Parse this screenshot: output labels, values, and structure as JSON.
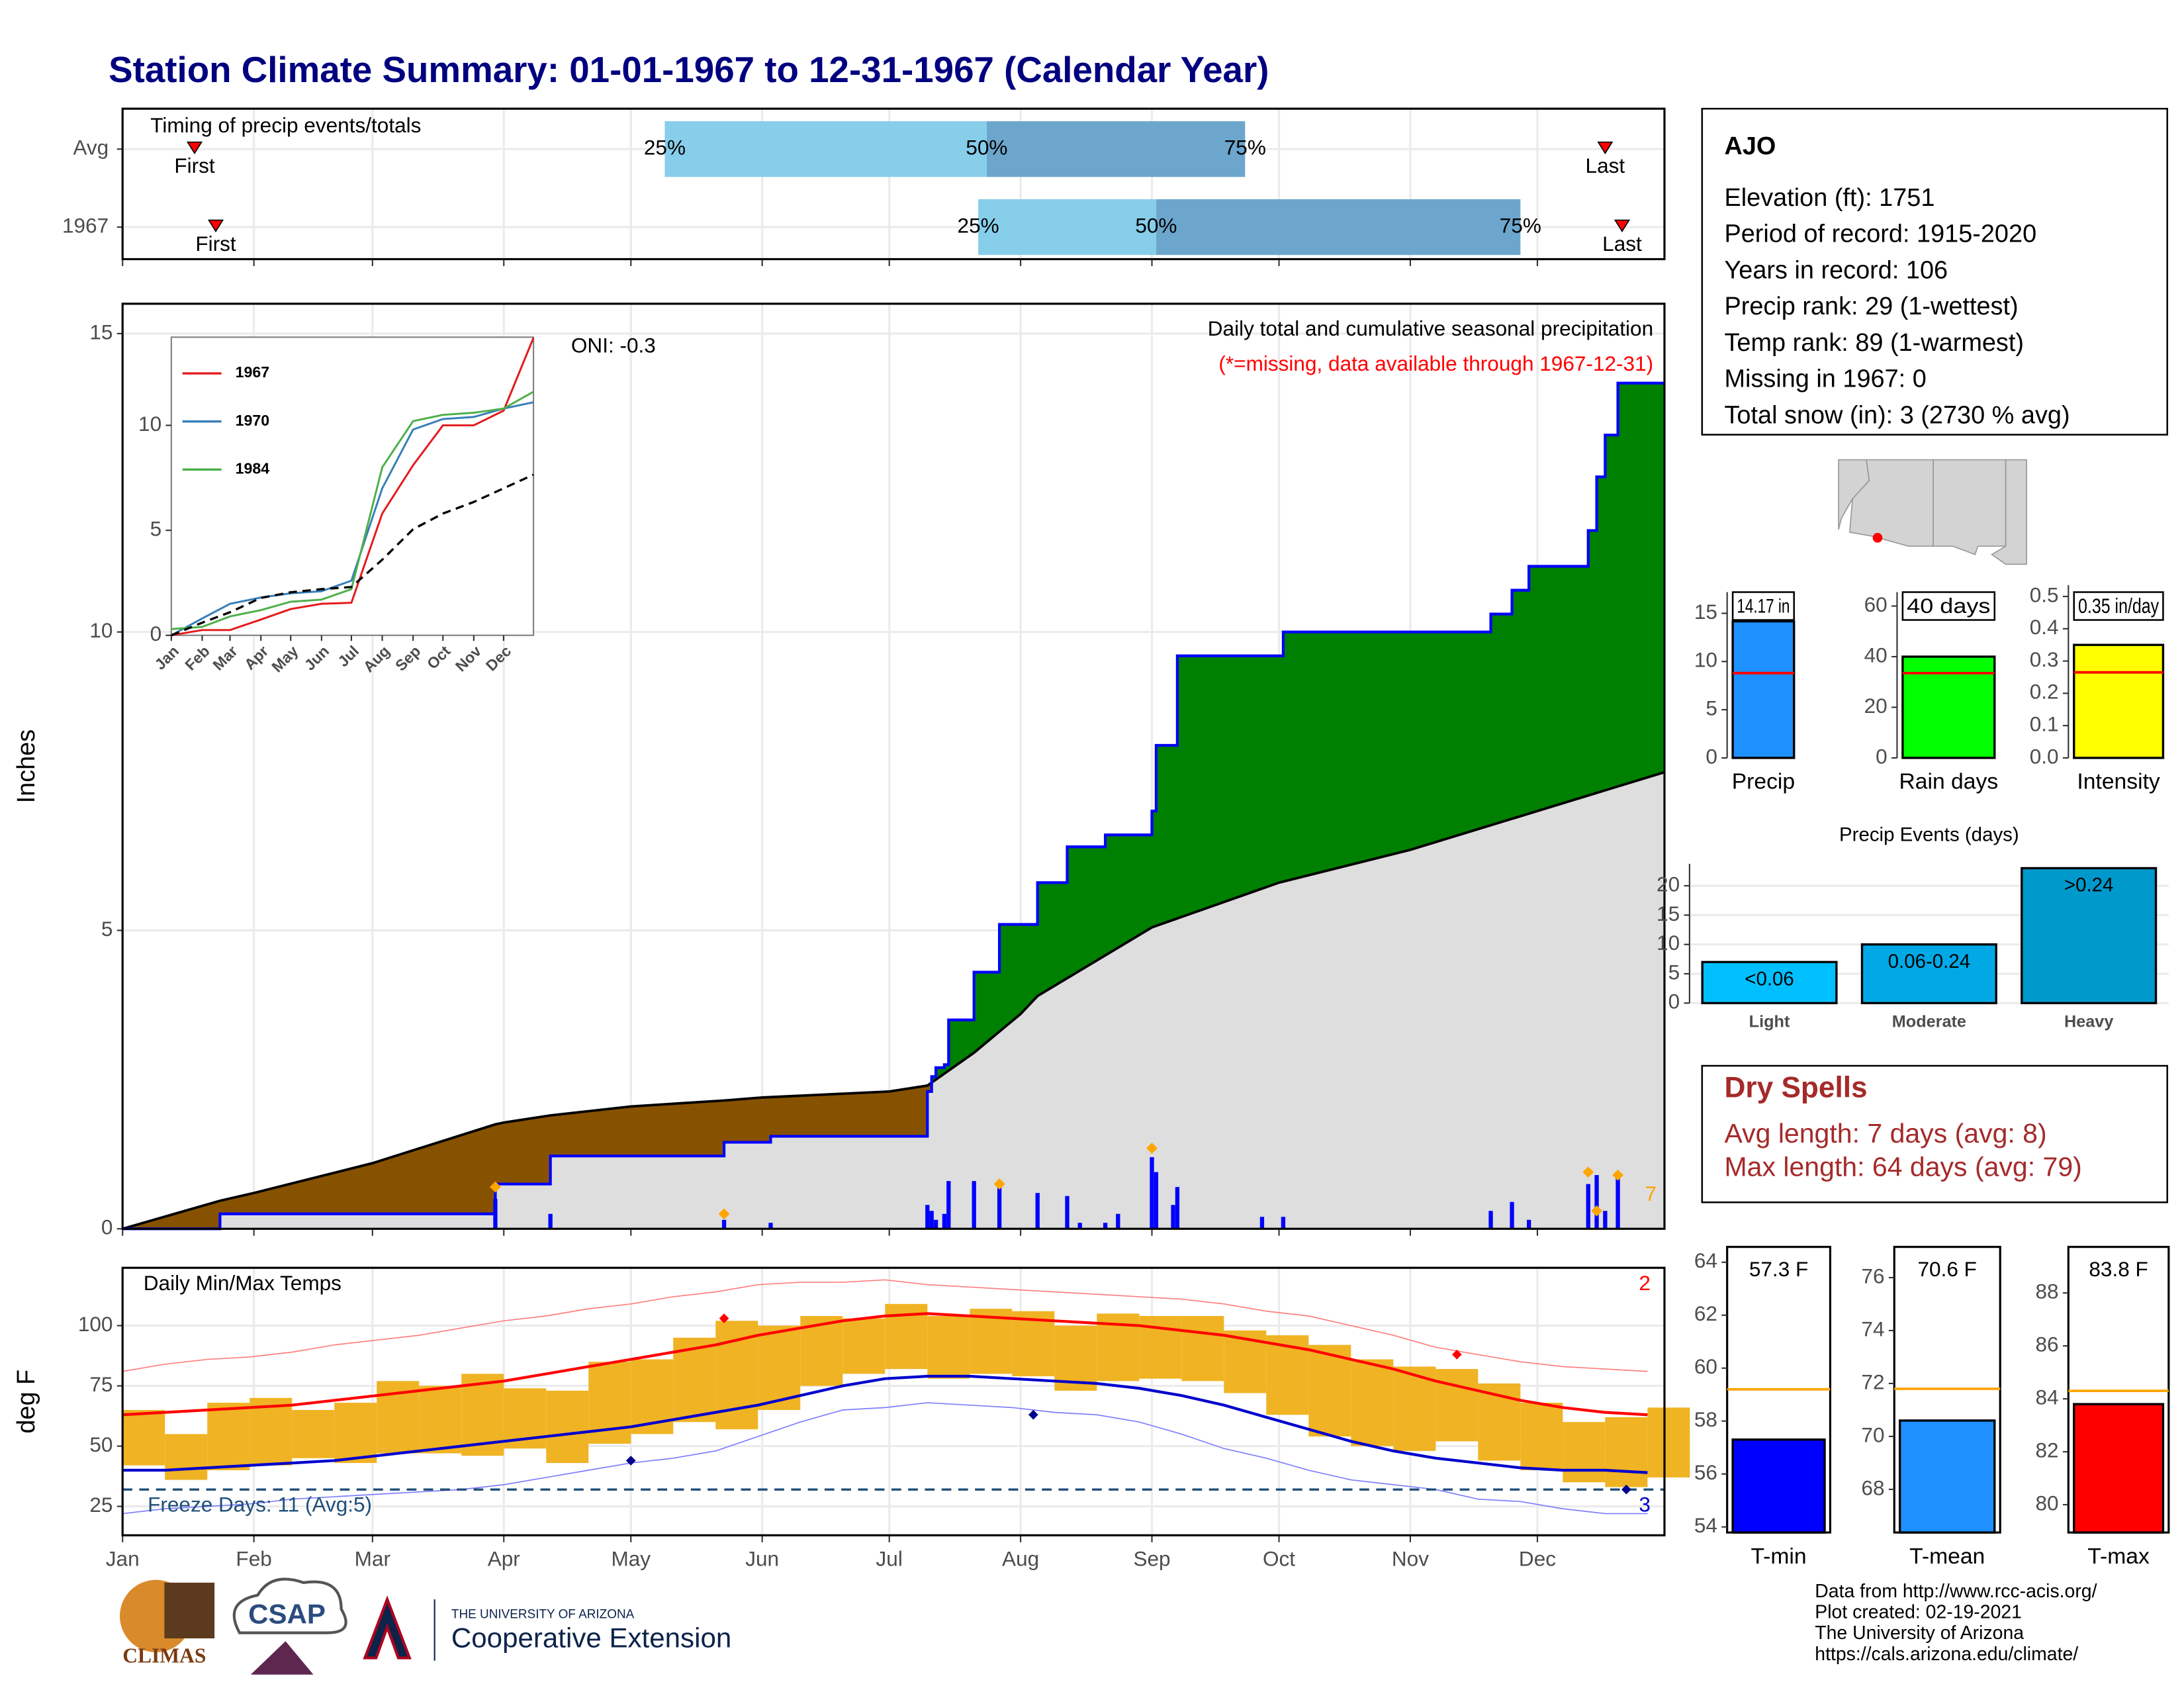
{
  "title": "Station Climate Summary: 01-01-1967 to 12-31-1967 (Calendar Year)",
  "chart_data": [
    {
      "type": "timing",
      "annotation": "Timing of precip events/totals",
      "xlim": [
        0,
        364
      ],
      "xticks": [
        0,
        31,
        59,
        90,
        120,
        151,
        181,
        212,
        243,
        273,
        304,
        334
      ],
      "categories": [
        "Avg",
        "1967"
      ],
      "first": [
        17,
        22
      ],
      "q25": [
        128,
        202
      ],
      "q50": [
        204,
        244
      ],
      "q75": [
        265,
        330
      ],
      "last": [
        350,
        354
      ],
      "labels": {
        "first": "First",
        "last": "Last",
        "q25": "25%",
        "q50": "50%",
        "q75": "75%"
      },
      "colors": {
        "lower": "#87ceeb",
        "upper": "#6ca6cd",
        "marker": "#ff0000"
      }
    },
    {
      "type": "cumulative",
      "title": "Daily total and cumulative seasonal precipitation",
      "subtitle": "(*=missing, data available through 1967-12-31)",
      "annotation": "ONI: -0.3",
      "count": 7,
      "ylabel": "Inches",
      "xlim": [
        0,
        364
      ],
      "ylim": [
        0,
        15.5
      ],
      "yticks": [
        0,
        5,
        10,
        15
      ],
      "xticks": [
        0,
        31,
        59,
        90,
        120,
        151,
        181,
        212,
        243,
        273,
        304,
        334
      ],
      "observed": {
        "color": "#0000ff",
        "x": [
          0,
          23,
          88,
          101,
          142,
          153,
          190,
          191,
          192,
          194,
          195,
          201,
          207,
          216,
          223,
          232,
          243,
          244,
          249,
          274,
          323,
          328,
          332,
          346,
          348,
          350,
          353
        ],
        "values": [
          0,
          0.25,
          0.75,
          1.22,
          1.45,
          1.55,
          2.3,
          2.55,
          2.7,
          2.75,
          3.5,
          4.3,
          5.1,
          5.8,
          6.4,
          6.6,
          7.0,
          8.1,
          9.6,
          10.0,
          10.3,
          10.7,
          11.1,
          11.7,
          12.6,
          13.3,
          14.17
        ]
      },
      "average": {
        "color": "#000000",
        "x": [
          0,
          23,
          31,
          59,
          88,
          90,
          101,
          120,
          142,
          151,
          181,
          190,
          201,
          212,
          216,
          243,
          273,
          304,
          334,
          364
        ],
        "values": [
          0,
          0.47,
          0.6,
          1.1,
          1.75,
          1.78,
          1.9,
          2.05,
          2.15,
          2.2,
          2.3,
          2.4,
          2.95,
          3.6,
          3.9,
          5.05,
          5.8,
          6.35,
          7.0,
          7.65
        ]
      },
      "daily": {
        "color": "#0000ff",
        "x": [
          88,
          101,
          142,
          153,
          190,
          191,
          192,
          194,
          195,
          201,
          207,
          216,
          223,
          226,
          232,
          235,
          243,
          244,
          248,
          249,
          269,
          274,
          323,
          328,
          332,
          346,
          348,
          350,
          353
        ],
        "values": [
          0.5,
          0.25,
          0.15,
          0.1,
          0.4,
          0.3,
          0.15,
          0.25,
          0.8,
          0.8,
          0.7,
          0.6,
          0.55,
          0.1,
          0.1,
          0.25,
          1.2,
          0.95,
          0.4,
          0.7,
          0.2,
          0.2,
          0.3,
          0.45,
          0.15,
          0.75,
          0.9,
          0.3,
          0.85
        ]
      },
      "markers": {
        "color": "#ffa500",
        "x": [
          88,
          142,
          207,
          243,
          346,
          348,
          353
        ],
        "values": [
          0.7,
          0.25,
          0.75,
          1.35,
          0.95,
          0.3,
          0.9
        ]
      },
      "above_color": "#008000",
      "below_color": "#875200",
      "base_color": "#dedede"
    },
    {
      "type": "line",
      "xlim": [
        0,
        364
      ],
      "ylim": [
        0,
        14.2
      ],
      "yticks": [
        0,
        5,
        10
      ],
      "xticks": [
        {
          "value": 0,
          "label": "Jan"
        },
        {
          "value": 31,
          "label": "Feb"
        },
        {
          "value": 59,
          "label": "Mar"
        },
        {
          "value": 90,
          "label": "Apr"
        },
        {
          "value": 120,
          "label": "May"
        },
        {
          "value": 151,
          "label": "Jun"
        },
        {
          "value": 181,
          "label": "Jul"
        },
        {
          "value": 212,
          "label": "Aug"
        },
        {
          "value": 243,
          "label": "Sep"
        },
        {
          "value": 273,
          "label": "Oct"
        },
        {
          "value": 304,
          "label": "Nov"
        },
        {
          "value": 334,
          "label": "Dec"
        }
      ],
      "x": [
        0,
        31,
        59,
        90,
        120,
        151,
        181,
        212,
        243,
        273,
        304,
        334,
        364
      ],
      "series": [
        {
          "name": "1967",
          "color": "#e41a1c",
          "values": [
            0,
            0.25,
            0.25,
            0.75,
            1.25,
            1.5,
            1.55,
            5.8,
            8.1,
            10.0,
            10.0,
            10.7,
            14.17
          ]
        },
        {
          "name": "1970",
          "color": "#377eb8",
          "values": [
            0,
            0.8,
            1.5,
            1.8,
            2.0,
            2.1,
            2.6,
            7.0,
            9.8,
            10.3,
            10.4,
            10.8,
            11.1
          ]
        },
        {
          "name": "1984",
          "color": "#4daf4a",
          "values": [
            0.3,
            0.4,
            0.9,
            1.2,
            1.6,
            1.7,
            2.2,
            8.0,
            10.2,
            10.5,
            10.6,
            10.8,
            11.6
          ]
        },
        {
          "color": "#000000",
          "dash": true,
          "values": [
            0,
            0.6,
            1.1,
            1.78,
            2.05,
            2.2,
            2.3,
            3.6,
            5.05,
            5.8,
            6.35,
            7.0,
            7.65
          ]
        }
      ]
    },
    {
      "type": "temps",
      "title": "Daily Min/Max Temps",
      "ylabel": "deg F",
      "annotation": "Freeze Days: 11 (Avg:5)",
      "high_count": 2,
      "low_count": 3,
      "xlim": [
        0,
        364
      ],
      "ylim": [
        13,
        124
      ],
      "yticks": [
        25,
        50,
        75,
        100
      ],
      "xticks": [
        {
          "value": 0,
          "label": "Jan"
        },
        {
          "value": 31,
          "label": "Feb"
        },
        {
          "value": 59,
          "label": "Mar"
        },
        {
          "value": 90,
          "label": "Apr"
        },
        {
          "value": 120,
          "label": "May"
        },
        {
          "value": 151,
          "label": "Jun"
        },
        {
          "value": 181,
          "label": "Jul"
        },
        {
          "value": 212,
          "label": "Aug"
        },
        {
          "value": 243,
          "label": "Sep"
        },
        {
          "value": 273,
          "label": "Oct"
        },
        {
          "value": 304,
          "label": "Nov"
        },
        {
          "value": 334,
          "label": "Dec"
        }
      ],
      "freeze": 32,
      "freeze_color": "#1f4e79",
      "x": [
        0,
        10,
        20,
        30,
        40,
        50,
        60,
        70,
        80,
        90,
        100,
        110,
        120,
        130,
        140,
        150,
        160,
        170,
        180,
        190,
        200,
        210,
        220,
        230,
        240,
        250,
        260,
        270,
        280,
        290,
        300,
        310,
        320,
        330,
        340,
        350,
        360
      ],
      "daily_low": [
        42,
        36,
        40,
        42,
        45,
        43,
        47,
        47,
        46,
        49,
        43,
        51,
        55,
        60,
        57,
        65,
        75,
        80,
        82,
        78,
        80,
        79,
        73,
        77,
        78,
        77,
        72,
        63,
        54,
        50,
        48,
        52,
        44,
        40,
        35,
        33,
        37
      ],
      "daily_high": [
        65,
        55,
        68,
        70,
        65,
        68,
        77,
        75,
        80,
        74,
        73,
        85,
        86,
        95,
        102,
        100,
        104,
        103,
        109,
        104,
        107,
        106,
        100,
        105,
        104,
        104,
        98,
        96,
        92,
        86,
        83,
        82,
        76,
        68,
        60,
        62,
        66
      ],
      "bar_color": "#f0b323",
      "avg_max": {
        "color": "#ff0000",
        "values": [
          63,
          64,
          65,
          66,
          67,
          69,
          71,
          73,
          75,
          77,
          80,
          83,
          86,
          89,
          92,
          96,
          99,
          102,
          104,
          105,
          104,
          103,
          102,
          101,
          100,
          98,
          96,
          93,
          90,
          86,
          82,
          77,
          73,
          69,
          66,
          64,
          63
        ]
      },
      "avg_min": {
        "color": "#0000cd",
        "values": [
          40,
          40,
          41,
          42,
          43,
          44,
          46,
          48,
          50,
          52,
          54,
          56,
          58,
          61,
          64,
          67,
          71,
          75,
          78,
          79,
          79,
          78,
          77,
          76,
          74,
          71,
          67,
          62,
          57,
          52,
          48,
          45,
          43,
          41,
          40,
          40,
          39
        ]
      },
      "record_max": {
        "color": "#ff7f7f",
        "values": [
          81,
          84,
          86,
          87,
          89,
          92,
          94,
          96,
          99,
          102,
          104,
          107,
          109,
          112,
          114,
          117,
          118,
          118,
          119,
          117,
          116,
          115,
          114,
          113,
          112,
          111,
          109,
          106,
          104,
          100,
          96,
          91,
          88,
          85,
          83,
          82,
          81
        ]
      },
      "record_min": {
        "color": "#7f7fff",
        "values": [
          22,
          24,
          25,
          26,
          28,
          29,
          30,
          31,
          32,
          34,
          37,
          40,
          43,
          45,
          48,
          54,
          60,
          65,
          66,
          68,
          67,
          66,
          64,
          63,
          60,
          55,
          49,
          45,
          40,
          36,
          34,
          32,
          28,
          27,
          24,
          22,
          22
        ]
      },
      "record_highs": {
        "color": "#ff0000",
        "x": [
          142,
          315
        ],
        "values": [
          103,
          88
        ]
      },
      "record_lows": {
        "color": "#00008b",
        "x": [
          120,
          215,
          355
        ],
        "values": [
          44,
          63,
          32
        ]
      }
    },
    {
      "type": "minibar",
      "categories": [
        "Precip"
      ],
      "values": [
        14.17
      ],
      "value_labels": [
        "14.17 in"
      ],
      "reference": 8.8,
      "reference_color": "#ff0000",
      "color": "#1e90ff",
      "ylim": [
        0,
        17.2
      ],
      "yticks": [
        0,
        5,
        10,
        15
      ]
    },
    {
      "type": "minibar",
      "categories": [
        "Rain days"
      ],
      "values": [
        40
      ],
      "value_labels": [
        "40 days"
      ],
      "reference": 33.5,
      "reference_color": "#ff0000",
      "color": "#00ff00",
      "ylim": [
        0,
        65.5
      ],
      "yticks": [
        0,
        20,
        40,
        60
      ]
    },
    {
      "type": "minibar",
      "categories": [
        "Intensity"
      ],
      "values": [
        0.35
      ],
      "value_labels": [
        "0.35 in/day"
      ],
      "reference": 0.265,
      "reference_color": "#ff0000",
      "color": "#ffff00",
      "ylim": [
        0,
        0.535
      ],
      "yticks": [
        {
          "value": 0,
          "label": "0.0"
        },
        0.1,
        0.2,
        0.3,
        0.4,
        0.5
      ]
    },
    {
      "type": "bar",
      "title": "Precip Events (days)",
      "categories": [
        "Light",
        "Moderate",
        "Heavy"
      ],
      "values": [
        7,
        10,
        23
      ],
      "ranges": [
        "<0.06",
        "0.06-0.24",
        ">0.24"
      ],
      "colors": [
        "#00bfff",
        "#00a9e6",
        "#0099cc"
      ],
      "ylim": [
        0,
        23.75
      ],
      "yticks": [
        0,
        5,
        10,
        15,
        20
      ]
    },
    {
      "type": "minibar",
      "categories": [
        "T-min"
      ],
      "values": [
        57.3
      ],
      "value_labels": [
        "57.3 F"
      ],
      "reference": 59.2,
      "reference_color": "#ffa500",
      "color": "#0000ff",
      "ylim": [
        53.79,
        64.58
      ],
      "yticks": [
        54,
        56,
        58,
        60,
        62,
        64
      ]
    },
    {
      "type": "minibar",
      "categories": [
        "T-mean"
      ],
      "values": [
        70.6
      ],
      "value_labels": [
        "70.6 F"
      ],
      "reference": 71.8,
      "reference_color": "#ffa500",
      "color": "#1e90ff",
      "ylim": [
        66.37,
        77.16
      ],
      "yticks": [
        68,
        70,
        72,
        74,
        76
      ]
    },
    {
      "type": "minibar",
      "categories": [
        "T-max"
      ],
      "values": [
        83.8
      ],
      "value_labels": [
        "83.8 F"
      ],
      "reference": 84.3,
      "reference_color": "#ffa500",
      "color": "#ff0000",
      "ylim": [
        78.95,
        89.74
      ],
      "yticks": [
        80,
        82,
        84,
        86,
        88
      ]
    }
  ],
  "station": {
    "name": "AJO",
    "lines": [
      "Elevation (ft): 1751",
      "Period of record: 1915-2020",
      "Years in record: 106",
      "Precip rank: 29 (1-wettest)",
      "Temp rank: 89 (1-warmest)",
      "Missing in 1967: 0",
      "Total snow (in): 3 (2730 % avg)"
    ]
  },
  "dry_spells": {
    "title": "Dry Spells",
    "lines": [
      "Avg length: 7 days (avg: 8)",
      "Max length: 64 days (avg: 79)"
    ]
  },
  "footer": {
    "lines": [
      "Data from http://www.rcc-acis.org/",
      "Plot created: 02-19-2021",
      "The University of Arizona",
      "https://cals.arizona.edu/climate/"
    ]
  },
  "logos": {
    "climas": "CLIMAS",
    "csap": "CSAP",
    "ua": "THE UNIVERSITY OF ARIZONA",
    "coop": "Cooperative Extension"
  }
}
